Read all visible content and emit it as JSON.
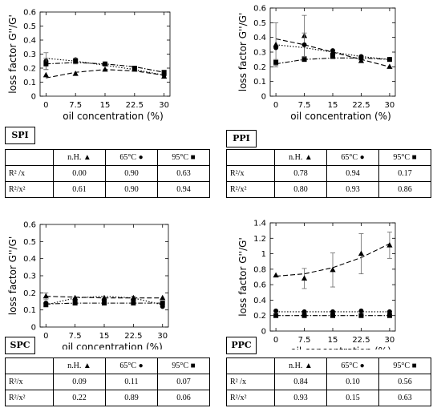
{
  "chart_data": [
    {
      "type": "line",
      "title": "SPI",
      "xlabel": "oil concentration (%)",
      "ylabel": "loss factor G''/G'",
      "x": [
        0,
        7.5,
        15,
        22.5,
        30
      ],
      "x_ticks": [
        "0",
        "7.5",
        "15",
        "22.5",
        "30"
      ],
      "ylim": [
        0,
        0.6
      ],
      "y_ticks": [
        "0",
        "0.1",
        "0.2",
        "0.3",
        "0.4",
        "0.5",
        "0.6"
      ],
      "grid": false,
      "series": [
        {
          "name": "n.H.",
          "marker": "triangle",
          "line": "dashed",
          "values": [
            0.15,
            0.16,
            0.19,
            0.19,
            0.14
          ],
          "fit": [
            0.13,
            0.17,
            0.19,
            0.18,
            0.15
          ],
          "err": [
            0,
            0,
            0,
            0,
            0
          ]
        },
        {
          "name": "65°C",
          "marker": "circle",
          "line": "dotted",
          "values": [
            0.25,
            0.26,
            0.23,
            0.2,
            0.15
          ],
          "fit": [
            0.27,
            0.25,
            0.22,
            0.19,
            0.15
          ],
          "err": [
            0.06,
            0,
            0,
            0,
            0
          ]
        },
        {
          "name": "95°C",
          "marker": "square",
          "line": "dashdot",
          "values": [
            0.23,
            0.25,
            0.23,
            0.2,
            0.17
          ],
          "fit": [
            0.23,
            0.24,
            0.23,
            0.21,
            0.17
          ],
          "err": [
            0.04,
            0.02,
            0.01,
            0.01,
            0.01
          ]
        }
      ]
    },
    {
      "type": "line",
      "title": "PPI",
      "xlabel": "oil concentration (%)",
      "ylabel": "loss factor G''/G'",
      "x": [
        0,
        7.5,
        15,
        22.5,
        30
      ],
      "x_ticks": [
        "0",
        "7.5",
        "15",
        "22.5",
        "30"
      ],
      "ylim": [
        0,
        0.6
      ],
      "y_ticks": [
        "0",
        "0.1",
        "0.2",
        "0.3",
        "0.4",
        "0.5",
        "0.6"
      ],
      "grid": false,
      "series": [
        {
          "name": "n.H.",
          "marker": "triangle",
          "line": "dashed",
          "values": [
            0.35,
            0.41,
            0.3,
            0.24,
            0.2
          ],
          "fit": [
            0.39,
            0.35,
            0.3,
            0.25,
            0.2
          ],
          "err": [
            0.15,
            0.14,
            0,
            0,
            0
          ]
        },
        {
          "name": "65°C",
          "marker": "circle",
          "line": "dotted",
          "values": [
            0.33,
            0.35,
            0.31,
            0.27,
            0.25
          ],
          "fit": [
            0.35,
            0.33,
            0.3,
            0.27,
            0.25
          ],
          "err": [
            0,
            0.08,
            0,
            0,
            0
          ]
        },
        {
          "name": "95°C",
          "marker": "square",
          "line": "dashdot",
          "values": [
            0.23,
            0.25,
            0.27,
            0.26,
            0.25
          ],
          "fit": [
            0.22,
            0.25,
            0.26,
            0.26,
            0.25
          ],
          "err": [
            0.02,
            0,
            0,
            0,
            0
          ]
        }
      ]
    },
    {
      "type": "line",
      "title": "SPC",
      "xlabel": "oil concentration (%)",
      "ylabel": "loss factor G''/G'",
      "x": [
        0,
        7.5,
        15,
        22.5,
        30
      ],
      "x_ticks": [
        "0",
        "7.5",
        "15",
        "22.5",
        "30"
      ],
      "ylim": [
        0,
        0.6
      ],
      "y_ticks": [
        "0",
        "0.1",
        "0.2",
        "0.3",
        "0.4",
        "0.5",
        "0.6"
      ],
      "grid": false,
      "series": [
        {
          "name": "n.H.",
          "marker": "triangle",
          "line": "dashed",
          "values": [
            0.18,
            0.17,
            0.17,
            0.17,
            0.17
          ],
          "fit": [
            0.18,
            0.175,
            0.17,
            0.17,
            0.17
          ],
          "err": [
            0.02,
            0,
            0,
            0.01,
            0
          ]
        },
        {
          "name": "65°C",
          "marker": "circle",
          "line": "dotted",
          "values": [
            0.14,
            0.16,
            0.16,
            0.16,
            0.12
          ],
          "fit": [
            0.13,
            0.17,
            0.18,
            0.17,
            0.13
          ],
          "err": [
            0,
            0,
            0,
            0,
            0
          ]
        },
        {
          "name": "95°C",
          "marker": "square",
          "line": "dashdot",
          "values": [
            0.13,
            0.14,
            0.14,
            0.14,
            0.14
          ],
          "fit": [
            0.135,
            0.14,
            0.14,
            0.14,
            0.14
          ],
          "err": [
            0,
            0,
            0,
            0,
            0
          ]
        }
      ]
    },
    {
      "type": "line",
      "title": "PPC",
      "xlabel": "oil concentration (%)",
      "ylabel": "loss factor G''/G'",
      "x": [
        0,
        7.5,
        15,
        22.5,
        30
      ],
      "x_ticks": [
        "0",
        "7.5",
        "15",
        "22.5",
        "30"
      ],
      "ylim": [
        0,
        1.4
      ],
      "y_ticks": [
        "0",
        "0.2",
        "0.4",
        "0.6",
        "0.8",
        "1",
        "1.2",
        "1.4"
      ],
      "grid": false,
      "series": [
        {
          "name": "n.H.",
          "marker": "triangle",
          "line": "dashed",
          "values": [
            0.72,
            0.68,
            0.79,
            1.0,
            1.11
          ],
          "fit": [
            0.71,
            0.74,
            0.82,
            0.95,
            1.13
          ],
          "err": [
            0,
            0.13,
            0.22,
            0.26,
            0.17
          ]
        },
        {
          "name": "65°C",
          "marker": "circle",
          "line": "dotted",
          "values": [
            0.26,
            0.25,
            0.25,
            0.26,
            0.25
          ],
          "fit": [
            0.25,
            0.25,
            0.25,
            0.25,
            0.25
          ],
          "err": [
            0,
            0,
            0,
            0,
            0
          ]
        },
        {
          "name": "95°C",
          "marker": "square",
          "line": "dashdot",
          "values": [
            0.2,
            0.2,
            0.2,
            0.2,
            0.2
          ],
          "fit": [
            0.2,
            0.2,
            0.2,
            0.2,
            0.2
          ],
          "err": [
            0,
            0,
            0,
            0,
            0
          ]
        }
      ]
    }
  ],
  "tables": [
    {
      "header": [
        "",
        "n.H.",
        "65°C",
        "95°C"
      ],
      "rows": [
        {
          "label": "R² /x",
          "values": [
            "0.00",
            "0.90",
            "0.63"
          ]
        },
        {
          "label": "R²/x²",
          "values": [
            "0.61",
            "0.90",
            "0.94"
          ]
        }
      ]
    },
    {
      "header": [
        "",
        "n.H.",
        "65°C",
        "95°C"
      ],
      "rows": [
        {
          "label": "R²/x",
          "values": [
            "0.78",
            "0.94",
            "0.17"
          ]
        },
        {
          "label": "R²/x²",
          "values": [
            "0.80",
            "0.93",
            "0.86"
          ]
        }
      ]
    },
    {
      "header": [
        "",
        "n.H.",
        "65°C",
        "95°C"
      ],
      "rows": [
        {
          "label": "R²/x",
          "values": [
            "0.09",
            "0.11",
            "0.07"
          ]
        },
        {
          "label": "R²/x²",
          "values": [
            "0.22",
            "0.89",
            "0.06"
          ]
        }
      ]
    },
    {
      "header": [
        "",
        "n.H.",
        "65°C",
        "95°C"
      ],
      "rows": [
        {
          "label": "R² /x",
          "values": [
            "0.84",
            "0.10",
            "0.56"
          ]
        },
        {
          "label": "R²/x²",
          "values": [
            "0.93",
            "0.15",
            "0.63"
          ]
        }
      ]
    }
  ],
  "colors": {
    "ink": "#000000",
    "background": "#ffffff"
  }
}
